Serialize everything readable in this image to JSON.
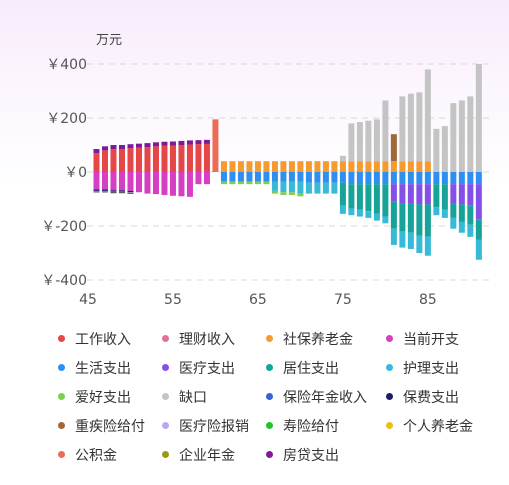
{
  "chart_data": {
    "type": "bar",
    "stacked": true,
    "title": "",
    "unit": "万元",
    "xlabel": "",
    "ylabel": "万元",
    "x_ticks": [
      45,
      55,
      65,
      75,
      85
    ],
    "y_ticks": [
      400,
      200,
      0,
      -200,
      -400
    ],
    "y_tick_labels": [
      "￥400",
      "￥200",
      "￥0",
      "￥-200",
      "￥-400"
    ],
    "ylim": [
      -400,
      400
    ],
    "xlim": [
      45,
      91
    ],
    "grid": true,
    "legend_position": "bottom",
    "colors": {
      "工作收入": "#e64646",
      "理财收入": "#e0709c",
      "社保养老金": "#f59a2f",
      "当前开支": "#d63fc4",
      "生活支出": "#2f8ff0",
      "医疗支出": "#8450e8",
      "居住支出": "#17a398",
      "护理支出": "#37b9d8",
      "爱好支出": "#7ccf4a",
      "缺口": "#c4c4c4",
      "保险年金收入": "#3a5fd8",
      "保费支出": "#1a1d6b",
      "重疾险给付": "#a0683a",
      "医疗险报销": "#bda6ee",
      "寿险给付": "#22c22a",
      "个人养老金": "#e3c21c",
      "公积金": "#ec6c55",
      "企业年金": "#9a9a14",
      "房贷支出": "#7e1a9a"
    },
    "legend": [
      "工作收入",
      "理财收入",
      "社保养老金",
      "当前开支",
      "生活支出",
      "医疗支出",
      "居住支出",
      "护理支出",
      "爱好支出",
      "缺口",
      "保险年金收入",
      "保费支出",
      "重疾险给付",
      "医疗险报销",
      "寿险给付",
      "个人养老金",
      "公积金",
      "企业年金",
      "房贷支出"
    ],
    "x": [
      46,
      47,
      48,
      49,
      50,
      51,
      52,
      53,
      54,
      55,
      56,
      57,
      58,
      59,
      60,
      61,
      62,
      63,
      64,
      65,
      66,
      67,
      68,
      69,
      70,
      71,
      72,
      73,
      74,
      75,
      76,
      77,
      78,
      79,
      80,
      81,
      82,
      83,
      84,
      85,
      86,
      87,
      88,
      89,
      90,
      91
    ],
    "positive_series": [
      {
        "name": "工作收入",
        "values": [
          70,
          80,
          85,
          85,
          88,
          90,
          92,
          95,
          97,
          98,
          100,
          102,
          103,
          104,
          0,
          0,
          0,
          0,
          0,
          0,
          0,
          0,
          0,
          0,
          0,
          0,
          0,
          0,
          0,
          0,
          0,
          0,
          0,
          0,
          0,
          0,
          0,
          0,
          0,
          0,
          0,
          0,
          0,
          0,
          0,
          0
        ]
      },
      {
        "name": "房贷支出",
        "values": [
          15,
          15,
          15,
          15,
          15,
          15,
          15,
          15,
          15,
          15,
          15,
          15,
          15,
          15,
          0,
          0,
          0,
          0,
          0,
          0,
          0,
          0,
          0,
          0,
          0,
          0,
          0,
          0,
          0,
          0,
          0,
          0,
          0,
          0,
          0,
          0,
          0,
          0,
          0,
          0,
          0,
          0,
          0,
          0,
          0,
          0
        ]
      },
      {
        "name": "公积金",
        "values": [
          0,
          0,
          0,
          0,
          0,
          0,
          0,
          0,
          0,
          0,
          0,
          0,
          0,
          0,
          195,
          0,
          0,
          0,
          0,
          0,
          0,
          0,
          0,
          0,
          0,
          0,
          0,
          0,
          0,
          0,
          0,
          0,
          0,
          0,
          0,
          0,
          0,
          0,
          0,
          0,
          0,
          0,
          0,
          0,
          0,
          0
        ]
      },
      {
        "name": "社保养老金",
        "values": [
          0,
          0,
          0,
          0,
          0,
          0,
          0,
          0,
          0,
          0,
          0,
          0,
          0,
          0,
          0,
          40,
          40,
          40,
          40,
          40,
          40,
          40,
          40,
          40,
          40,
          40,
          40,
          40,
          40,
          40,
          40,
          40,
          40,
          40,
          40,
          40,
          40,
          40,
          40,
          40,
          0,
          0,
          0,
          0,
          0,
          0
        ]
      },
      {
        "name": "重疾险给付",
        "values": [
          0,
          0,
          0,
          0,
          0,
          0,
          0,
          0,
          0,
          0,
          0,
          0,
          0,
          0,
          0,
          0,
          0,
          0,
          0,
          0,
          0,
          0,
          0,
          0,
          0,
          0,
          0,
          0,
          0,
          0,
          0,
          0,
          0,
          0,
          0,
          100,
          0,
          0,
          0,
          0,
          0,
          0,
          0,
          0,
          0,
          0
        ]
      },
      {
        "name": "缺口",
        "values": [
          0,
          0,
          0,
          0,
          0,
          0,
          0,
          0,
          0,
          0,
          0,
          0,
          0,
          0,
          0,
          0,
          0,
          0,
          0,
          0,
          0,
          0,
          0,
          0,
          0,
          0,
          0,
          0,
          0,
          20,
          140,
          145,
          150,
          155,
          225,
          0,
          240,
          250,
          255,
          340,
          160,
          170,
          255,
          265,
          280,
          400
        ]
      }
    ],
    "negative_series": [
      {
        "name": "当前开支",
        "values": [
          -65,
          -65,
          -68,
          -68,
          -70,
          -75,
          -80,
          -82,
          -85,
          -88,
          -90,
          -92,
          -45,
          -45,
          0,
          0,
          0,
          0,
          0,
          0,
          0,
          0,
          0,
          0,
          0,
          0,
          0,
          0,
          0,
          0,
          0,
          0,
          0,
          0,
          0,
          0,
          0,
          0,
          0,
          0,
          0,
          0,
          0,
          0,
          0,
          0
        ]
      },
      {
        "name": "保费支出",
        "values": [
          -5,
          -5,
          -5,
          -5,
          -5,
          0,
          0,
          0,
          0,
          0,
          0,
          0,
          0,
          0,
          0,
          0,
          0,
          0,
          0,
          0,
          0,
          0,
          0,
          0,
          0,
          0,
          0,
          0,
          0,
          0,
          0,
          0,
          0,
          0,
          0,
          0,
          0,
          0,
          0,
          0,
          0,
          0,
          0,
          0,
          0,
          0
        ]
      },
      {
        "name": "生活支出",
        "values": [
          0,
          0,
          0,
          0,
          0,
          0,
          0,
          0,
          0,
          0,
          0,
          0,
          0,
          0,
          0,
          -35,
          -35,
          -35,
          -35,
          -35,
          -35,
          -35,
          -35,
          -35,
          -35,
          -40,
          -40,
          -40,
          -40,
          -40,
          -45,
          -45,
          -45,
          -45,
          -45,
          -45,
          -45,
          -45,
          -45,
          -45,
          -45,
          -45,
          -45,
          -45,
          -45,
          -45
        ]
      },
      {
        "name": "医疗支出",
        "values": [
          0,
          0,
          0,
          0,
          0,
          0,
          0,
          0,
          0,
          0,
          0,
          0,
          0,
          0,
          0,
          0,
          0,
          0,
          0,
          0,
          0,
          0,
          0,
          0,
          0,
          0,
          0,
          0,
          0,
          0,
          0,
          0,
          0,
          0,
          0,
          -65,
          -70,
          -70,
          -75,
          -75,
          0,
          0,
          -70,
          -75,
          -80,
          -130
        ]
      },
      {
        "name": "居住支出",
        "values": [
          0,
          0,
          0,
          0,
          0,
          0,
          0,
          0,
          0,
          0,
          0,
          0,
          0,
          0,
          0,
          0,
          0,
          0,
          0,
          0,
          0,
          0,
          0,
          0,
          0,
          0,
          0,
          0,
          0,
          -85,
          -90,
          -95,
          -100,
          -110,
          -120,
          -100,
          -105,
          -110,
          -115,
          -120,
          -85,
          -95,
          -55,
          -65,
          -70,
          -75
        ]
      },
      {
        "name": "护理支出",
        "values": [
          0,
          0,
          0,
          0,
          0,
          0,
          0,
          0,
          0,
          0,
          0,
          0,
          0,
          0,
          0,
          0,
          0,
          0,
          0,
          0,
          0,
          -35,
          -40,
          -40,
          -45,
          -40,
          -40,
          -40,
          -40,
          -30,
          -25,
          -25,
          -25,
          -25,
          -25,
          -60,
          -60,
          -60,
          -65,
          -70,
          -30,
          -30,
          -40,
          -40,
          -45,
          -75
        ]
      },
      {
        "name": "爱好支出",
        "values": [
          0,
          0,
          0,
          0,
          0,
          0,
          0,
          0,
          0,
          0,
          0,
          0,
          0,
          0,
          0,
          -10,
          -10,
          -10,
          -10,
          -10,
          -10,
          -10,
          -10,
          -10,
          -10,
          0,
          0,
          0,
          0,
          0,
          0,
          0,
          0,
          0,
          0,
          0,
          0,
          0,
          0,
          0,
          0,
          0,
          0,
          0,
          0,
          0
        ]
      }
    ]
  },
  "axis": {
    "unit_label": "万元",
    "y_labels": [
      "￥400",
      "￥200",
      "￥0",
      "￥-200",
      "￥-400"
    ],
    "x_labels": [
      "45",
      "55",
      "65",
      "75",
      "85"
    ]
  },
  "legend_items": [
    {
      "label": "工作收入",
      "color": "#e64646"
    },
    {
      "label": "理财收入",
      "color": "#e0709c"
    },
    {
      "label": "社保养老金",
      "color": "#f59a2f"
    },
    {
      "label": "当前开支",
      "color": "#d63fc4"
    },
    {
      "label": "生活支出",
      "color": "#2f8ff0"
    },
    {
      "label": "医疗支出",
      "color": "#8450e8"
    },
    {
      "label": "居住支出",
      "color": "#17a398"
    },
    {
      "label": "护理支出",
      "color": "#37b9d8"
    },
    {
      "label": "爱好支出",
      "color": "#7ccf4a"
    },
    {
      "label": "缺口",
      "color": "#c4c4c4"
    },
    {
      "label": "保险年金收入",
      "color": "#3a5fd8"
    },
    {
      "label": "保费支出",
      "color": "#1a1d6b"
    },
    {
      "label": "重疾险给付",
      "color": "#a0683a"
    },
    {
      "label": "医疗险报销",
      "color": "#bda6ee"
    },
    {
      "label": "寿险给付",
      "color": "#22c22a"
    },
    {
      "label": "个人养老金",
      "color": "#e3c21c"
    },
    {
      "label": "公积金",
      "color": "#ec6c55"
    },
    {
      "label": "企业年金",
      "color": "#9a9a14"
    },
    {
      "label": "房贷支出",
      "color": "#7e1a9a"
    }
  ]
}
